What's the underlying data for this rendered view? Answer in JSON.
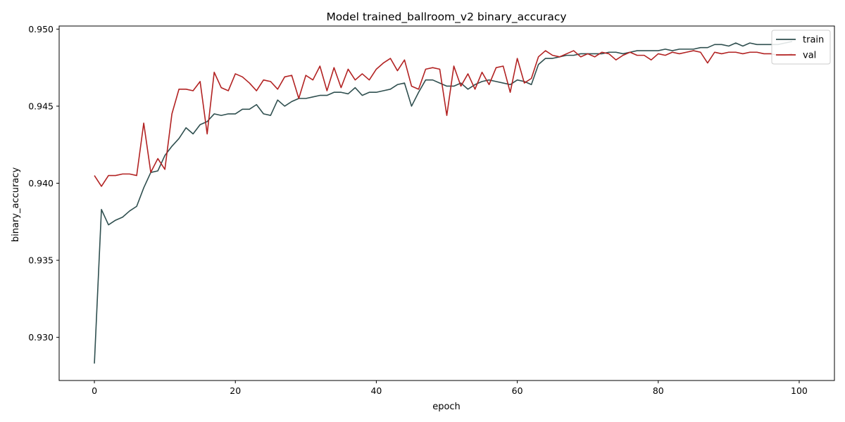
{
  "chart_data": {
    "type": "line",
    "title": "Model trained_ballroom_v2 binary_accuracy",
    "xlabel": "epoch",
    "ylabel": "binary_accuracy",
    "xlim": [
      -5,
      105
    ],
    "ylim": [
      0.9272,
      0.9502
    ],
    "xticks": [
      0,
      20,
      40,
      60,
      80,
      100
    ],
    "yticks": [
      0.93,
      0.935,
      0.94,
      0.945,
      0.95
    ],
    "xtick_labels": [
      "0",
      "20",
      "40",
      "60",
      "80",
      "100"
    ],
    "ytick_labels": [
      "0.930",
      "0.935",
      "0.940",
      "0.945",
      "0.950"
    ],
    "grid": false,
    "legend_position": "top-right",
    "x": [
      0,
      1,
      2,
      3,
      4,
      5,
      6,
      7,
      8,
      9,
      10,
      11,
      12,
      13,
      14,
      15,
      16,
      17,
      18,
      19,
      20,
      21,
      22,
      23,
      24,
      25,
      26,
      27,
      28,
      29,
      30,
      31,
      32,
      33,
      34,
      35,
      36,
      37,
      38,
      39,
      40,
      41,
      42,
      43,
      44,
      45,
      46,
      47,
      48,
      49,
      50,
      51,
      52,
      53,
      54,
      55,
      56,
      57,
      58,
      59,
      60,
      61,
      62,
      63,
      64,
      65,
      66,
      67,
      68,
      69,
      70,
      71,
      72,
      73,
      74,
      75,
      76,
      77,
      78,
      79,
      80,
      81,
      82,
      83,
      84,
      85,
      86,
      87,
      88,
      89,
      90,
      91,
      92,
      93,
      94,
      95,
      96,
      97,
      98,
      99
    ],
    "series": [
      {
        "name": "train",
        "color": "#2f4f4f",
        "values": [
          0.9283,
          0.9383,
          0.9373,
          0.9376,
          0.9378,
          0.9382,
          0.9385,
          0.9397,
          0.9407,
          0.9408,
          0.9418,
          0.9424,
          0.9429,
          0.9436,
          0.9432,
          0.9438,
          0.944,
          0.9445,
          0.9444,
          0.9445,
          0.9445,
          0.9448,
          0.9448,
          0.9451,
          0.9445,
          0.9444,
          0.9454,
          0.945,
          0.9453,
          0.9455,
          0.9455,
          0.9456,
          0.9457,
          0.9457,
          0.9459,
          0.9459,
          0.9458,
          0.9462,
          0.9457,
          0.9459,
          0.9459,
          0.946,
          0.9461,
          0.9464,
          0.9465,
          0.945,
          0.9459,
          0.9467,
          0.9467,
          0.9465,
          0.9463,
          0.9463,
          0.9465,
          0.9461,
          0.9464,
          0.9466,
          0.9467,
          0.9466,
          0.9465,
          0.9464,
          0.9467,
          0.9466,
          0.9464,
          0.9477,
          0.9481,
          0.9481,
          0.9482,
          0.9483,
          0.9483,
          0.9484,
          0.9484,
          0.9484,
          0.9484,
          0.9485,
          0.9485,
          0.9484,
          0.9485,
          0.9486,
          0.9486,
          0.9486,
          0.9486,
          0.9487,
          0.9486,
          0.9487,
          0.9487,
          0.9487,
          0.9488,
          0.9488,
          0.949,
          0.949,
          0.9489,
          0.9491,
          0.9489,
          0.9491,
          0.949,
          0.949,
          0.949,
          0.949,
          0.9491,
          0.9492
        ]
      },
      {
        "name": "val",
        "color": "#b22222",
        "values": [
          0.9405,
          0.9398,
          0.9405,
          0.9405,
          0.9406,
          0.9406,
          0.9405,
          0.9439,
          0.9407,
          0.9416,
          0.9409,
          0.9445,
          0.9461,
          0.9461,
          0.946,
          0.9466,
          0.9432,
          0.9472,
          0.9462,
          0.946,
          0.9471,
          0.9469,
          0.9465,
          0.946,
          0.9467,
          0.9466,
          0.9461,
          0.9469,
          0.947,
          0.9455,
          0.947,
          0.9467,
          0.9476,
          0.946,
          0.9475,
          0.9462,
          0.9474,
          0.9467,
          0.9471,
          0.9467,
          0.9474,
          0.9478,
          0.9481,
          0.9473,
          0.948,
          0.9463,
          0.9461,
          0.9474,
          0.9475,
          0.9474,
          0.9444,
          0.9476,
          0.9463,
          0.9471,
          0.9461,
          0.9472,
          0.9464,
          0.9475,
          0.9476,
          0.9459,
          0.9481,
          0.9465,
          0.9468,
          0.9482,
          0.9486,
          0.9483,
          0.9482,
          0.9484,
          0.9486,
          0.9482,
          0.9484,
          0.9482,
          0.9485,
          0.9484,
          0.948,
          0.9483,
          0.9485,
          0.9483,
          0.9483,
          0.948,
          0.9484,
          0.9483,
          0.9485,
          0.9484,
          0.9485,
          0.9486,
          0.9485,
          0.9478,
          0.9485,
          0.9484,
          0.9485,
          0.9485,
          0.9484,
          0.9485,
          0.9485,
          0.9484,
          0.9484,
          0.9483,
          0.9483,
          0.9484
        ]
      }
    ]
  }
}
